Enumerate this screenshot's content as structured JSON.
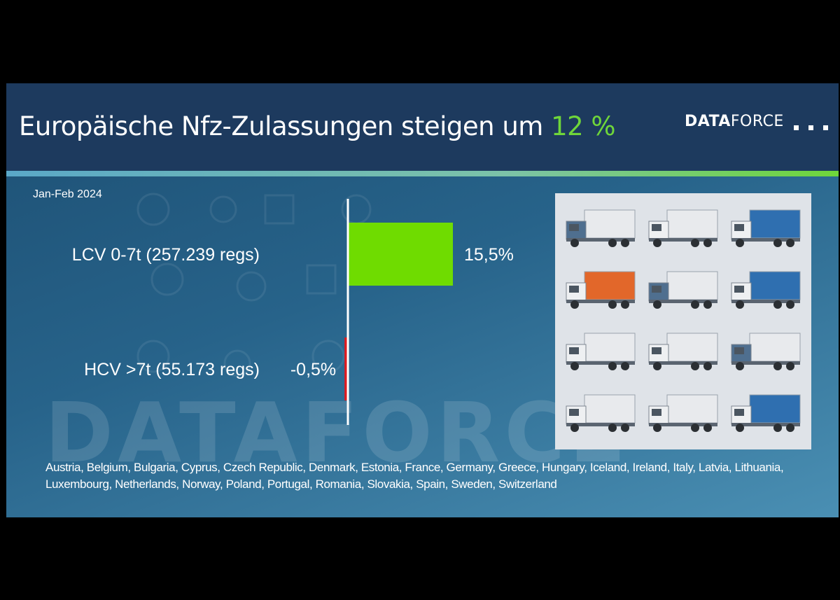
{
  "title": {
    "part1": "Europäische ",
    "part2": "Nfz-Zulassungen steigen um ",
    "highlight": "12 %"
  },
  "logo": {
    "bold": "DATA",
    "light": "FORCE",
    "watermark": "DATAFORCE"
  },
  "period": "Jan-Feb 2024",
  "colors": {
    "positive": "#6fdc00",
    "negative": "#e0191e",
    "title_highlight": "#6fd63a",
    "header": "#1d3a5e"
  },
  "chart_data": {
    "type": "bar",
    "orientation": "horizontal",
    "categories": [
      "LCV 0-7t (257.239 regs)",
      "HCV >7t (55.173 regs)"
    ],
    "values": [
      15.5,
      -0.5
    ],
    "value_labels": [
      "15,5%",
      "-0,5%"
    ],
    "xlim": [
      -0.5,
      15.5
    ],
    "grid": false,
    "legend": "none"
  },
  "countries": "Austria, Belgium, Bulgaria, Cyprus, Czech Republic, Denmark, Estonia, France, Germany, Greece, Hungary, Iceland, Ireland, Italy, Latvia, Lithuania, Luxembourg, Netherlands, Norway, Poland, Portugal, Romania, Slovakia, Spain, Sweden, Switzerland",
  "photo": {
    "icon": "trucks-grid-illustration",
    "body_colors": [
      "#4f6f8f",
      "#e8eaed",
      "#e2672a",
      "#2f6fb0",
      "#5a6470"
    ]
  }
}
